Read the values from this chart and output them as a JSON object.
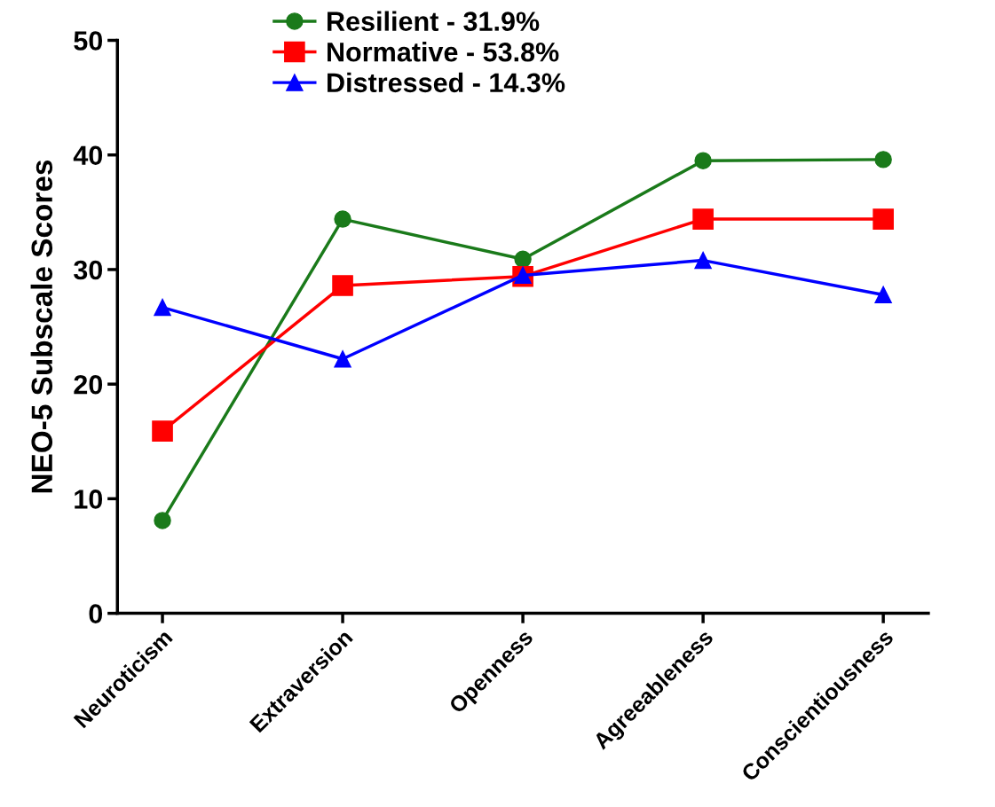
{
  "chart_data": {
    "type": "line",
    "ylabel": "NEO-5 Subscale Scores",
    "categories": [
      "Neuroticism",
      "Extraversion",
      "Openness",
      "Agreeableness",
      "Conscientiousness"
    ],
    "series": [
      {
        "name": "Resilient - 31.9%",
        "color": "#1a7a1a",
        "marker": "circle",
        "values": [
          8.1,
          34.4,
          30.9,
          39.5,
          39.6
        ]
      },
      {
        "name": "Normative - 53.8%",
        "color": "#ff0000",
        "marker": "square",
        "values": [
          15.9,
          28.6,
          29.4,
          34.4,
          34.4
        ]
      },
      {
        "name": "Distressed - 14.3%",
        "color": "#0000ff",
        "marker": "triangle",
        "values": [
          26.7,
          22.2,
          29.5,
          30.8,
          27.8
        ]
      }
    ],
    "ylim": [
      0,
      50
    ],
    "yticks": [
      0,
      10,
      20,
      30,
      40,
      50
    ],
    "grid": false,
    "legend": "top",
    "line_style": "solid"
  }
}
